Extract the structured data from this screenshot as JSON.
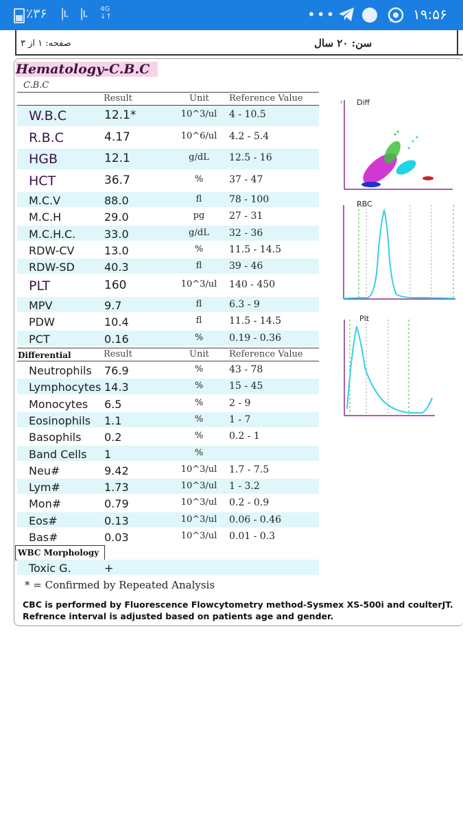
{
  "status_bar": {
    "battery": "٪۳۶",
    "network": "4G",
    "dots": "•••",
    "time": "۱۹:۵۶",
    "icons": [
      "battery-icon",
      "signal-icon",
      "telegram-icon",
      "chat-icon",
      "whatsapp-icon"
    ]
  },
  "header": {
    "page_label": "صفحه: ۱ از ۳",
    "age_label": "سن:  ۲۰ سال"
  },
  "report": {
    "title": "Hematology-C.B.C",
    "subtitle": "C.B.C",
    "columns": {
      "result": "Result",
      "unit": "Unit",
      "reference": "Reference Value"
    },
    "cbc_rows": [
      {
        "name": "W.B.C",
        "result": "12.1*",
        "unit": "10^3/ul",
        "ref": "4 - 10.5",
        "big": true,
        "shaded": true
      },
      {
        "name": "R.B.C",
        "result": "4.17",
        "unit": "10^6/ul",
        "ref": "4.2 - 5.4",
        "big": true,
        "shaded": false
      },
      {
        "name": "HGB",
        "result": "12.1",
        "unit": "g/dL",
        "ref": "12.5 - 16",
        "big": true,
        "shaded": true
      },
      {
        "name": "HCT",
        "result": "36.7",
        "unit": "%",
        "ref": "37 - 47",
        "big": true,
        "shaded": false
      },
      {
        "name": "M.C.V",
        "result": "88.0",
        "unit": "fl",
        "ref": "78 - 100",
        "big": false,
        "shaded": true
      },
      {
        "name": "M.C.H",
        "result": "29.0",
        "unit": "pg",
        "ref": "27 - 31",
        "big": false,
        "shaded": false
      },
      {
        "name": "M.C.H.C.",
        "result": "33.0",
        "unit": "g/dL",
        "ref": "32 - 36",
        "big": false,
        "shaded": true
      },
      {
        "name": "RDW-CV",
        "result": "13.0",
        "unit": "%",
        "ref": "11.5 - 14.5",
        "big": false,
        "shaded": false
      },
      {
        "name": "RDW-SD",
        "result": "40.3",
        "unit": "fl",
        "ref": "39 - 46",
        "big": false,
        "shaded": true
      },
      {
        "name": "PLT",
        "result": "160",
        "unit": "10^3/ul",
        "ref": "140 - 450",
        "big": true,
        "shaded": false
      },
      {
        "name": "MPV",
        "result": "9.7",
        "unit": "fl",
        "ref": "6.3 - 9",
        "big": false,
        "shaded": true
      },
      {
        "name": "PDW",
        "result": "10.4",
        "unit": "fl",
        "ref": "11.5 - 14.5",
        "big": false,
        "shaded": false
      },
      {
        "name": "PCT",
        "result": "0.16",
        "unit": "%",
        "ref": "0.19 - 0.36",
        "big": false,
        "shaded": true
      }
    ],
    "differential_label": "Differential",
    "diff_rows": [
      {
        "name": "Neutrophils",
        "result": "76.9",
        "unit": "%",
        "ref": "43 - 78",
        "shaded": false
      },
      {
        "name": "Lymphocytes",
        "result": "14.3",
        "unit": "%",
        "ref": "15 - 45",
        "shaded": true
      },
      {
        "name": "Monocytes",
        "result": "6.5",
        "unit": "%",
        "ref": "2 - 9",
        "shaded": false
      },
      {
        "name": "Eosinophils",
        "result": "1.1",
        "unit": "%",
        "ref": "1 - 7",
        "shaded": true
      },
      {
        "name": "Basophils",
        "result": "0.2",
        "unit": "%",
        "ref": "0.2 - 1",
        "shaded": false
      },
      {
        "name": "Band Cells",
        "result": "1",
        "unit": "%",
        "ref": "",
        "shaded": true
      },
      {
        "name": "Neu#",
        "result": "9.42",
        "unit": "10^3/ul",
        "ref": "1.7 - 7.5",
        "shaded": false
      },
      {
        "name": "Lym#",
        "result": "1.73",
        "unit": "10^3/ul",
        "ref": "1 - 3.2",
        "shaded": true
      },
      {
        "name": "Mon#",
        "result": "0.79",
        "unit": "10^3/ul",
        "ref": "0.2 - 0.9",
        "shaded": false
      },
      {
        "name": "Eos#",
        "result": "0.13",
        "unit": "10^3/ul",
        "ref": "0.06 - 0.46",
        "shaded": true
      },
      {
        "name": "Bas#",
        "result": "0.03",
        "unit": "10^3/ul",
        "ref": "0.01 - 0.3",
        "shaded": false
      }
    ],
    "morphology_label": "WBC  Morphology",
    "morph_rows": [
      {
        "name": "Toxic G.",
        "result": "+",
        "shaded": true
      }
    ],
    "footnote": "* =  Confirmed by Repeated Analysis",
    "method_line1": "CBC is performed by Fluorescence Flowcytometry method-Sysmex XS-500i and coulterJT.",
    "method_line2": "Refrence interval is adjusted based on patients age and gender."
  },
  "graphs": {
    "diff": {
      "label": "Diff"
    },
    "rbc": {
      "label": "RBC"
    },
    "plt": {
      "label": "Plt"
    }
  },
  "colors": {
    "status_bar": "#1a7fe0",
    "row_shade": "#dff6fa",
    "title_bg": "#f6d4e6",
    "title_text": "#3a1340",
    "graph_axis": "#8a2b8a",
    "graph_curve": "#35d0e6",
    "graph_marker_green": "#3fbf3f"
  }
}
